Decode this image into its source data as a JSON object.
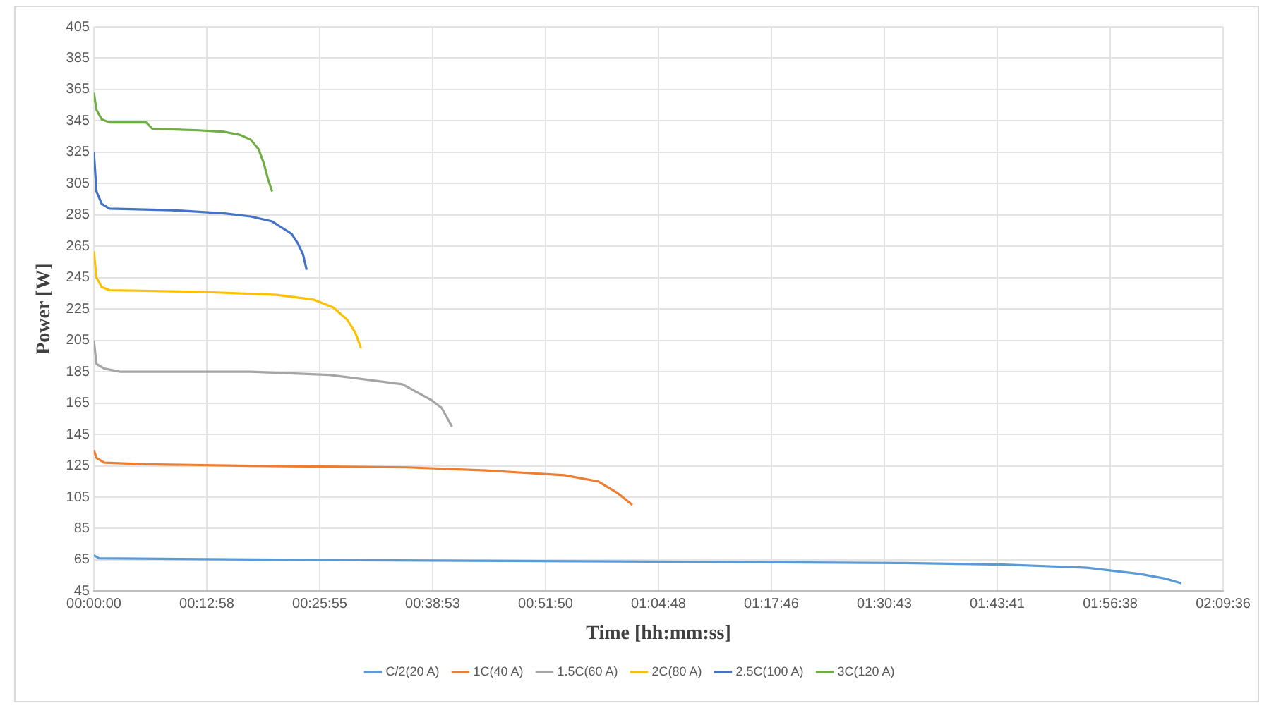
{
  "chart_data": {
    "type": "line",
    "xlabel": "Time [hh:mm:ss]",
    "ylabel": "Power [W]",
    "xlim": [
      0,
      2.16
    ],
    "xticks": [
      {
        "value": 0,
        "label": "00:00:00"
      },
      {
        "value": 0.216,
        "label": "00:12:58"
      },
      {
        "value": 0.432,
        "label": "00:25:55"
      },
      {
        "value": 0.648,
        "label": "00:38:53"
      },
      {
        "value": 0.864,
        "label": "00:51:50"
      },
      {
        "value": 1.08,
        "label": "01:04:48"
      },
      {
        "value": 1.296,
        "label": "01:17:46"
      },
      {
        "value": 1.512,
        "label": "01:30:43"
      },
      {
        "value": 1.728,
        "label": "01:43:41"
      },
      {
        "value": 1.944,
        "label": "01:56:38"
      },
      {
        "value": 2.16,
        "label": "02:09:36"
      }
    ],
    "ylim": [
      45,
      405
    ],
    "yticks": [
      45,
      65,
      85,
      105,
      125,
      145,
      165,
      185,
      205,
      225,
      245,
      265,
      285,
      305,
      325,
      345,
      365,
      385,
      405
    ],
    "grid": true,
    "legend": "bottom",
    "marker": "none",
    "line_style": "solid",
    "series": [
      {
        "name": "C/2(20 A)",
        "color": "#5b9bd5",
        "x": [
          0,
          0.01,
          0.4,
          1.0,
          1.55,
          1.74,
          1.9,
          2.0,
          2.05,
          2.08
        ],
        "values": [
          68,
          66,
          65,
          64,
          63,
          62,
          60,
          56,
          53,
          50
        ]
      },
      {
        "name": "1C(40 A)",
        "color": "#ed7d31",
        "x": [
          0,
          0.005,
          0.02,
          0.1,
          0.3,
          0.6,
          0.75,
          0.9,
          0.965,
          1.0,
          1.03
        ],
        "values": [
          135,
          130,
          127,
          126,
          125,
          124,
          122,
          119,
          115,
          108,
          100
        ]
      },
      {
        "name": "1.5C(60 A)",
        "color": "#a5a5a5",
        "x": [
          0,
          0.005,
          0.02,
          0.05,
          0.3,
          0.45,
          0.59,
          0.645,
          0.665,
          0.685
        ],
        "values": [
          205,
          190,
          187,
          185,
          185,
          183,
          177,
          167,
          162,
          150
        ]
      },
      {
        "name": "2C(80 A)",
        "color": "#ffc000",
        "x": [
          0,
          0.005,
          0.015,
          0.03,
          0.2,
          0.35,
          0.42,
          0.458,
          0.485,
          0.5,
          0.511
        ],
        "values": [
          262,
          245,
          239,
          237,
          236,
          234,
          231,
          226,
          218,
          210,
          200
        ]
      },
      {
        "name": "2.5C(100 A)",
        "color": "#4472c4",
        "x": [
          0,
          0.005,
          0.015,
          0.03,
          0.15,
          0.25,
          0.3,
          0.34,
          0.378,
          0.39,
          0.4,
          0.407
        ],
        "values": [
          325,
          300,
          292,
          289,
          288,
          286,
          284,
          281,
          273,
          267,
          260,
          250
        ]
      },
      {
        "name": "3C(120 A)",
        "color": "#70ad47",
        "x": [
          0,
          0.005,
          0.015,
          0.03,
          0.1,
          0.112,
          0.2,
          0.25,
          0.28,
          0.3,
          0.315,
          0.325,
          0.333,
          0.341
        ],
        "values": [
          363,
          352,
          346,
          344,
          344,
          340,
          339,
          338,
          336,
          333,
          327,
          318,
          308,
          300
        ]
      }
    ]
  }
}
